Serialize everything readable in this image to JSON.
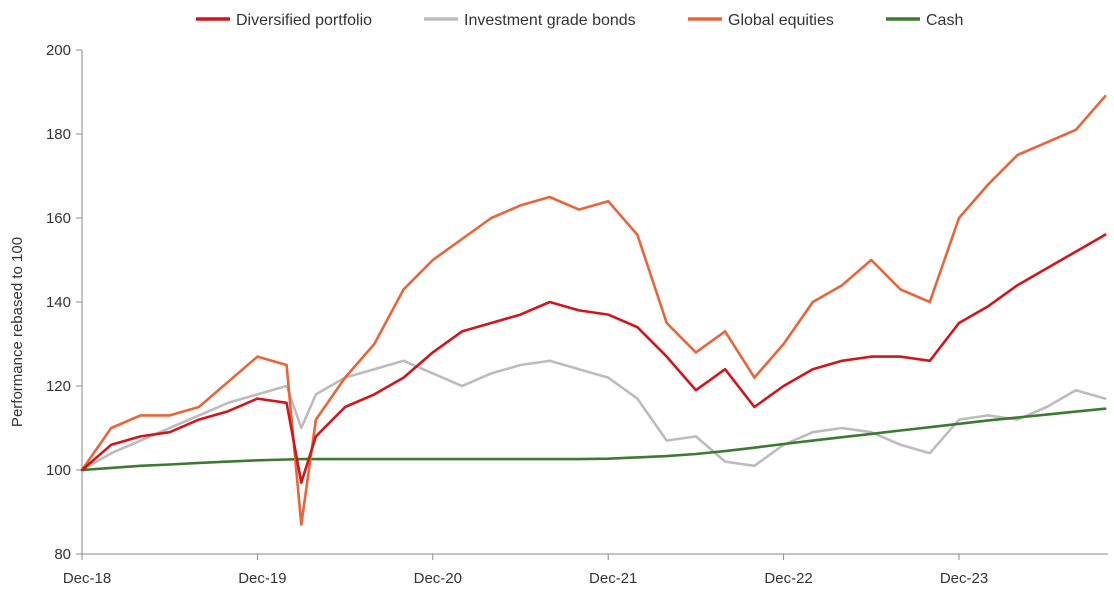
{
  "chart_data": {
    "type": "line",
    "title": "",
    "xlabel": "",
    "ylabel": "Performance rebased to 100",
    "ylim": [
      80,
      200
    ],
    "yticks": [
      "80",
      "100",
      "120",
      "140",
      "160",
      "180",
      "200"
    ],
    "xticks": [
      "Dec-18",
      "Dec-19",
      "Dec-20",
      "Dec-21",
      "Dec-22",
      "Dec-23"
    ],
    "xlim": [
      "2018-12",
      "2024-10"
    ],
    "grid": false,
    "legend": "top-center",
    "x": [
      "2018-12",
      "2019-02",
      "2019-04",
      "2019-06",
      "2019-08",
      "2019-10",
      "2019-12",
      "2020-02",
      "2020-03",
      "2020-04",
      "2020-06",
      "2020-08",
      "2020-10",
      "2020-12",
      "2021-02",
      "2021-04",
      "2021-06",
      "2021-08",
      "2021-10",
      "2021-12",
      "2022-02",
      "2022-04",
      "2022-06",
      "2022-08",
      "2022-10",
      "2022-12",
      "2023-02",
      "2023-04",
      "2023-06",
      "2023-08",
      "2023-10",
      "2023-12",
      "2024-02",
      "2024-04",
      "2024-06",
      "2024-08",
      "2024-10"
    ],
    "series": [
      {
        "name": "Diversified portfolio",
        "color": "#d0151b",
        "values": [
          100,
          106,
          108,
          109,
          112,
          114,
          117,
          116,
          97,
          108,
          115,
          118,
          122,
          128,
          133,
          135,
          137,
          140,
          138,
          137,
          134,
          127,
          119,
          124,
          115,
          120,
          124,
          126,
          127,
          127,
          126,
          135,
          139,
          144,
          148,
          152,
          156
        ]
      },
      {
        "name": "Investment grade bonds",
        "color": "#bcbcbc",
        "values": [
          100,
          104,
          107,
          110,
          113,
          116,
          118,
          120,
          110,
          118,
          122,
          124,
          126,
          123,
          120,
          123,
          125,
          126,
          124,
          122,
          117,
          107,
          108,
          102,
          101,
          106,
          109,
          110,
          109,
          106,
          104,
          112,
          113,
          112,
          115,
          119,
          117
        ]
      },
      {
        "name": "Global equities",
        "color": "#e8653a",
        "values": [
          100,
          110,
          113,
          113,
          115,
          121,
          127,
          125,
          87,
          112,
          122,
          130,
          143,
          150,
          155,
          160,
          163,
          165,
          162,
          164,
          156,
          135,
          128,
          133,
          122,
          130,
          140,
          144,
          150,
          143,
          140,
          160,
          168,
          175,
          178,
          181,
          189
        ]
      },
      {
        "name": "Cash",
        "color": "#3c7a32",
        "values": [
          100,
          100.5,
          101,
          101.3,
          101.7,
          102,
          102.3,
          102.5,
          102.6,
          102.6,
          102.6,
          102.6,
          102.6,
          102.6,
          102.6,
          102.6,
          102.6,
          102.6,
          102.6,
          102.7,
          103,
          103.3,
          103.8,
          104.5,
          105.3,
          106.2,
          107,
          107.8,
          108.6,
          109.4,
          110.2,
          111,
          111.8,
          112.5,
          113.2,
          113.9,
          114.6
        ]
      }
    ]
  }
}
